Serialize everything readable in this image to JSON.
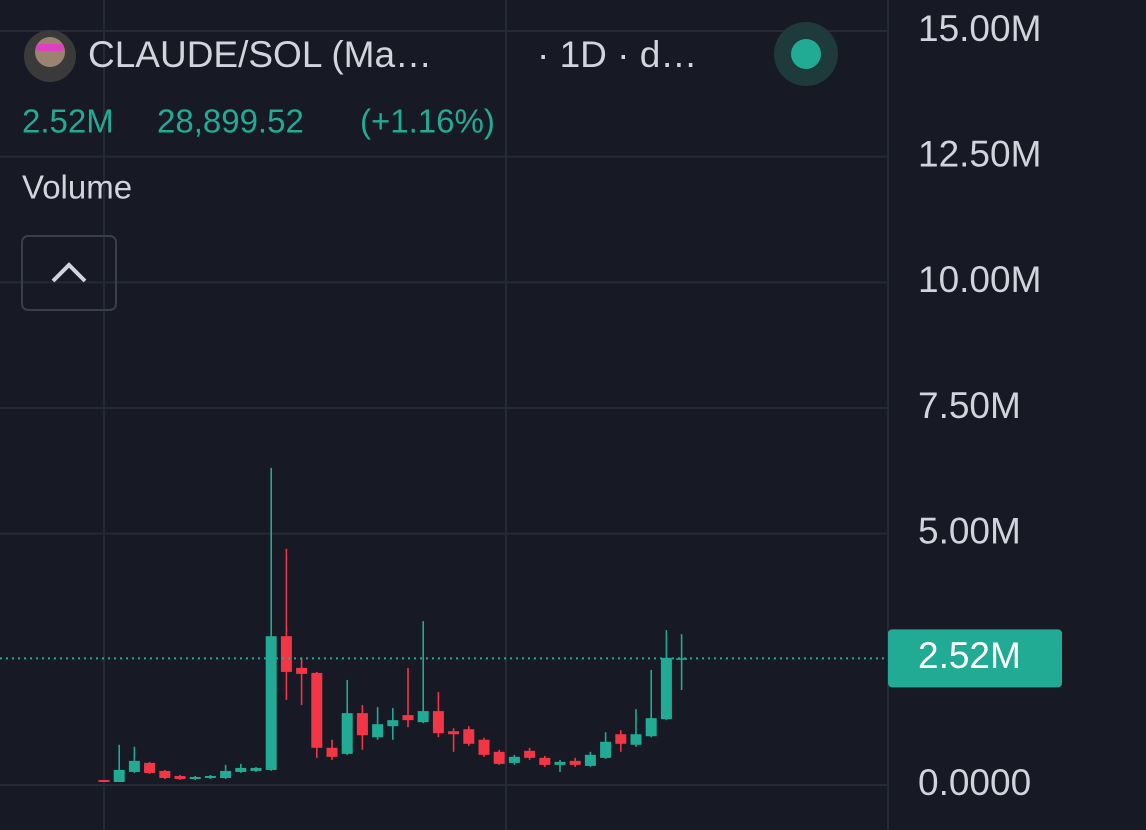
{
  "header": {
    "symbol": "CLAUDE/SOL (Ma…",
    "interval": "· 1D · d…",
    "last": "2.52M",
    "price": "28,899.52",
    "change": "(+1.16%)",
    "indicator": "Volume"
  },
  "chart_data": {
    "type": "candlestick",
    "open": [
      0.1,
      0.06,
      0.26,
      0.44,
      0.28,
      0.18,
      0.12,
      0.14,
      0.14,
      0.26,
      0.28,
      0.3,
      2.96,
      2.33,
      2.23,
      0.74,
      0.62,
      1.43,
      0.95,
      1.17,
      1.39,
      1.25,
      1.47,
      1.07,
      1.11,
      0.9,
      0.66,
      0.44,
      0.68,
      0.54,
      0.4,
      0.48,
      0.38,
      0.54,
      1.01,
      0.8,
      0.97,
      1.31,
      2.5
    ],
    "high": [
      0.1,
      0.8,
      0.76,
      0.46,
      0.3,
      0.2,
      0.18,
      0.2,
      0.4,
      0.42,
      0.36,
      6.31,
      4.7,
      2.53,
      2.25,
      0.9,
      2.09,
      1.59,
      1.55,
      1.53,
      2.33,
      3.26,
      1.85,
      1.13,
      1.17,
      0.94,
      0.7,
      0.6,
      0.74,
      0.58,
      0.5,
      0.54,
      0.66,
      1.05,
      1.09,
      1.51,
      2.29,
      3.08,
      3.0
    ],
    "low": [
      0.06,
      0.06,
      0.24,
      0.22,
      0.12,
      0.1,
      0.1,
      0.12,
      0.12,
      0.24,
      0.26,
      0.28,
      1.69,
      1.59,
      0.54,
      0.5,
      0.6,
      0.7,
      0.9,
      0.9,
      1.15,
      1.23,
      0.95,
      0.66,
      0.78,
      0.56,
      0.4,
      0.4,
      0.5,
      0.36,
      0.26,
      0.36,
      0.36,
      0.52,
      0.66,
      0.76,
      0.95,
      1.29,
      1.89
    ],
    "close": [
      0.06,
      0.3,
      0.48,
      0.24,
      0.14,
      0.12,
      0.16,
      0.18,
      0.28,
      0.34,
      0.34,
      2.96,
      2.25,
      2.21,
      0.74,
      0.56,
      1.43,
      0.99,
      1.21,
      1.29,
      1.29,
      1.47,
      1.03,
      1.01,
      0.82,
      0.6,
      0.42,
      0.56,
      0.54,
      0.4,
      0.46,
      0.4,
      0.6,
      0.86,
      0.82,
      1.01,
      1.33,
      2.53,
      2.52
    ],
    "up_color": "#22ab94",
    "down_color": "#f23645",
    "ylim": [
      0,
      15
    ],
    "yticks": [
      {
        "value": 0,
        "label": "0.0000"
      },
      {
        "value": 5,
        "label": "5.00M"
      },
      {
        "value": 7.5,
        "label": "7.50M"
      },
      {
        "value": 10,
        "label": "10.00M"
      },
      {
        "value": 12.5,
        "label": "12.50M"
      },
      {
        "value": 15,
        "label": "15.00M"
      }
    ],
    "last_price": {
      "value": 2.52,
      "label": "2.52M"
    },
    "grid": true
  }
}
